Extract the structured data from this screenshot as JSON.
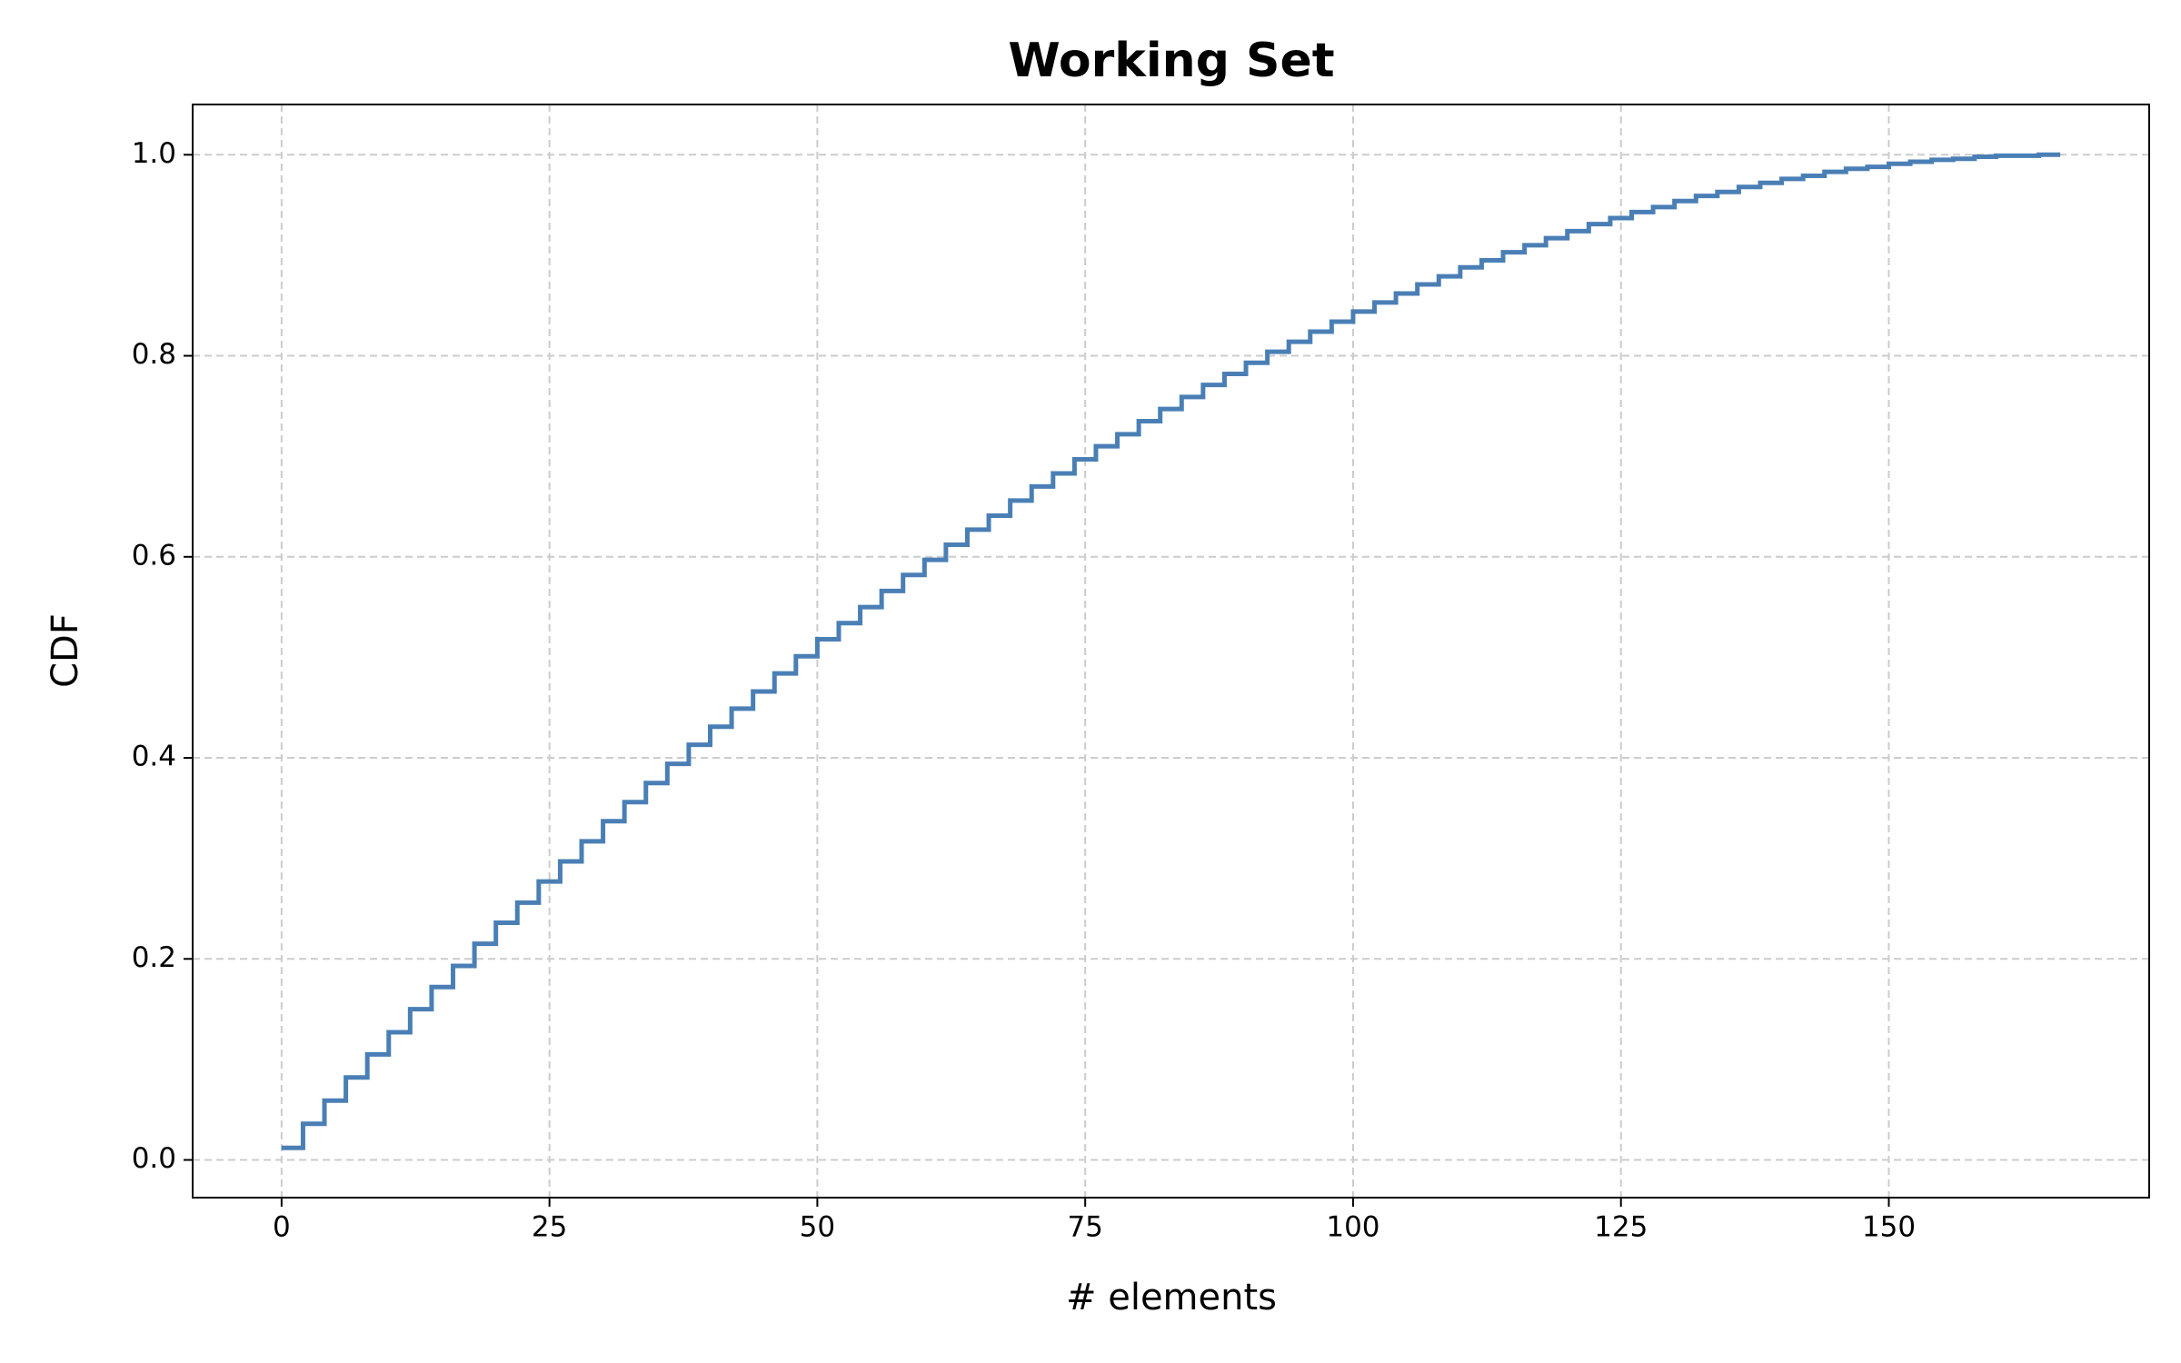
{
  "chart_data": {
    "type": "step",
    "title": "Working Set",
    "x_label": "# elements",
    "y_label": "CDF",
    "x": [
      0,
      2,
      4,
      6,
      8,
      10,
      12,
      14,
      16,
      18,
      20,
      22,
      24,
      26,
      28,
      30,
      32,
      34,
      36,
      38,
      40,
      42,
      44,
      46,
      48,
      50,
      52,
      54,
      56,
      58,
      60,
      62,
      64,
      66,
      68,
      70,
      72,
      74,
      76,
      78,
      80,
      82,
      84,
      86,
      88,
      90,
      92,
      94,
      96,
      98,
      100,
      102,
      104,
      106,
      108,
      110,
      112,
      114,
      116,
      118,
      120,
      122,
      124,
      126,
      128,
      130,
      132,
      134,
      136,
      138,
      140,
      142,
      144,
      146,
      148,
      150,
      152,
      154,
      156,
      158,
      160,
      162,
      164,
      166
    ],
    "values": [
      0.012,
      0.036,
      0.059,
      0.082,
      0.105,
      0.127,
      0.15,
      0.172,
      0.193,
      0.215,
      0.236,
      0.256,
      0.277,
      0.297,
      0.317,
      0.337,
      0.356,
      0.375,
      0.394,
      0.413,
      0.431,
      0.449,
      0.466,
      0.484,
      0.501,
      0.518,
      0.534,
      0.55,
      0.566,
      0.582,
      0.597,
      0.612,
      0.627,
      0.641,
      0.656,
      0.67,
      0.683,
      0.697,
      0.71,
      0.722,
      0.735,
      0.747,
      0.759,
      0.771,
      0.782,
      0.793,
      0.804,
      0.814,
      0.824,
      0.834,
      0.844,
      0.853,
      0.862,
      0.871,
      0.879,
      0.888,
      0.895,
      0.903,
      0.91,
      0.917,
      0.924,
      0.931,
      0.937,
      0.943,
      0.948,
      0.954,
      0.959,
      0.963,
      0.968,
      0.972,
      0.976,
      0.979,
      0.983,
      0.986,
      0.988,
      0.991,
      0.993,
      0.995,
      0.996,
      0.998,
      0.999,
      0.999,
      1.0,
      1.0
    ],
    "color": "#4a7fb5",
    "xlim": [
      -8.3,
      174.3
    ],
    "ylim": [
      -0.0375,
      1.05
    ],
    "xticks": [
      0,
      25,
      50,
      75,
      100,
      125,
      150
    ],
    "yticks": [
      {
        "value": 0,
        "label": "0.0"
      },
      {
        "value": 0.2,
        "label": "0.2"
      },
      {
        "value": 0.4,
        "label": "0.4"
      },
      {
        "value": 0.6,
        "label": "0.6"
      },
      {
        "value": 0.8,
        "label": "0.8"
      },
      {
        "value": 1,
        "label": "1.0"
      }
    ],
    "grid": true
  }
}
